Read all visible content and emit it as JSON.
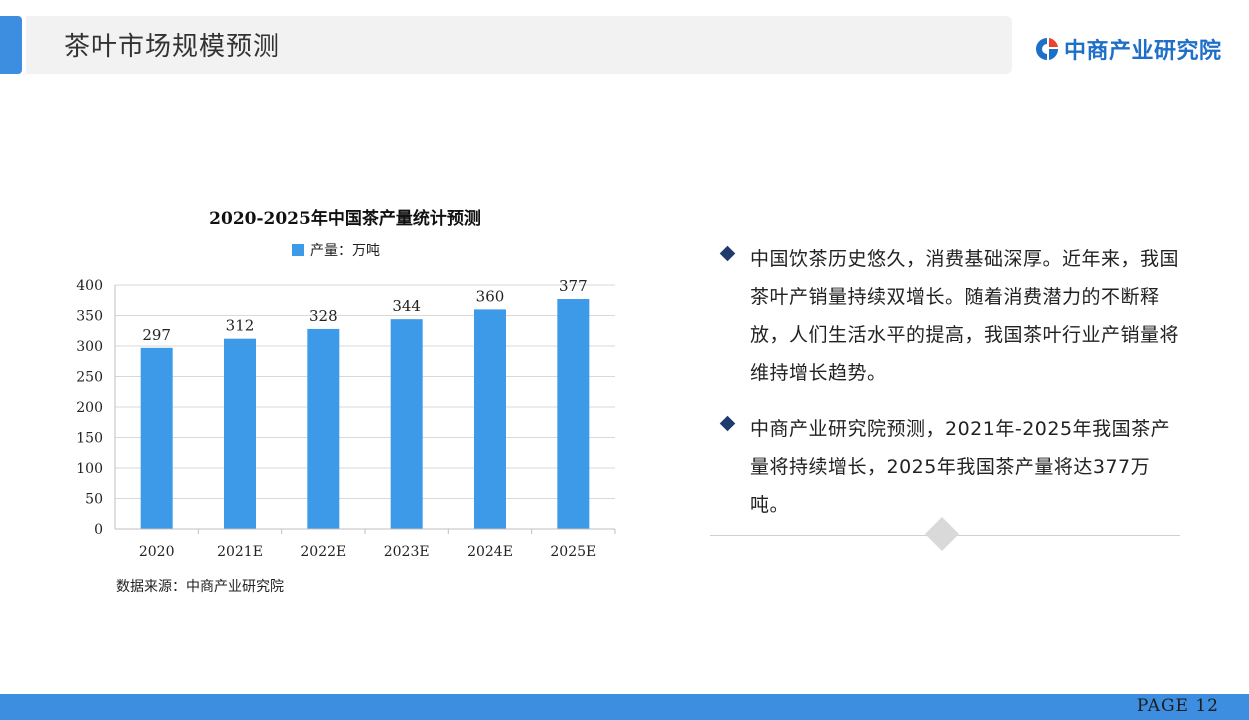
{
  "header": {
    "title": "茶叶市场规模预测",
    "logo_text": "中商产业研究院"
  },
  "chart_data": {
    "type": "bar",
    "title": "2020-2025年中国茶产量统计预测",
    "categories": [
      "2020",
      "2021E",
      "2022E",
      "2023E",
      "2024E",
      "2025E"
    ],
    "series": [
      {
        "name": "产量：万吨",
        "values": [
          297,
          312,
          328,
          344,
          360,
          377
        ],
        "color": "#3d9ae8"
      }
    ],
    "ylim": [
      0,
      400
    ],
    "yticks": [
      0,
      50,
      100,
      150,
      200,
      250,
      300,
      350,
      400
    ],
    "xlabel": "",
    "ylabel": "",
    "grid": true,
    "legend_position": "top"
  },
  "source": "数据来源：中商产业研究院",
  "bullets": [
    {
      "text": "中国饮茶历史悠久，消费基础深厚。近年来，我国茶叶产销量持续双增长。随着消费潜力的不断释放，人们生活水平的提高，我国茶叶行业产销量将维持增长趋势。"
    },
    {
      "text": "中商产业研究院预测，2021年-2025年我国茶产量将持续增长，2025年我国茶产量将达377万吨。"
    }
  ],
  "footer": {
    "page_label": "PAGE  12"
  },
  "colors": {
    "accent": "#3d8ee0",
    "bar": "#3d9ae8",
    "bullet": "#1f3b6b"
  }
}
